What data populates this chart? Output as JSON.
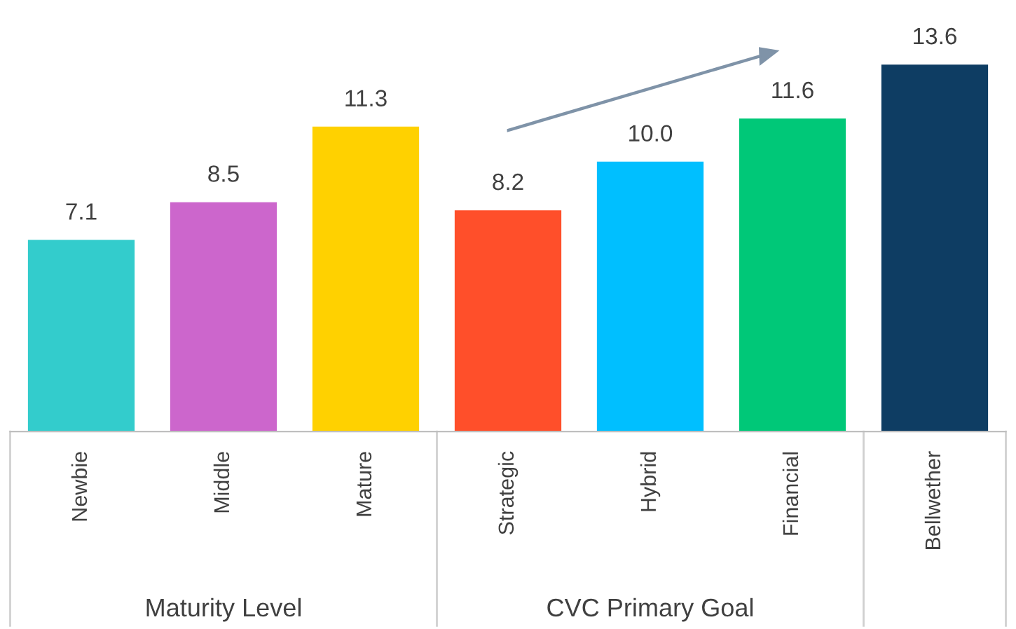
{
  "chart_data": {
    "type": "bar",
    "categories": [
      "Newbie",
      "Middle",
      "Mature",
      "Strategic",
      "Hybrid",
      "Financial",
      "Bellwether"
    ],
    "values": [
      7.1,
      8.5,
      11.3,
      8.2,
      10.0,
      11.6,
      13.6
    ],
    "colors": [
      "#33cccc",
      "#cc66cc",
      "#ffd100",
      "#ff4f2a",
      "#00bfff",
      "#00c878",
      "#0e3d63"
    ],
    "value_labels": [
      "7.1",
      "8.5",
      "11.3",
      "8.2",
      "10.0",
      "11.6",
      "13.6"
    ],
    "annotations": [
      "Maturity Level",
      "CVC Primary Goal"
    ],
    "grid": false,
    "legend": false
  }
}
